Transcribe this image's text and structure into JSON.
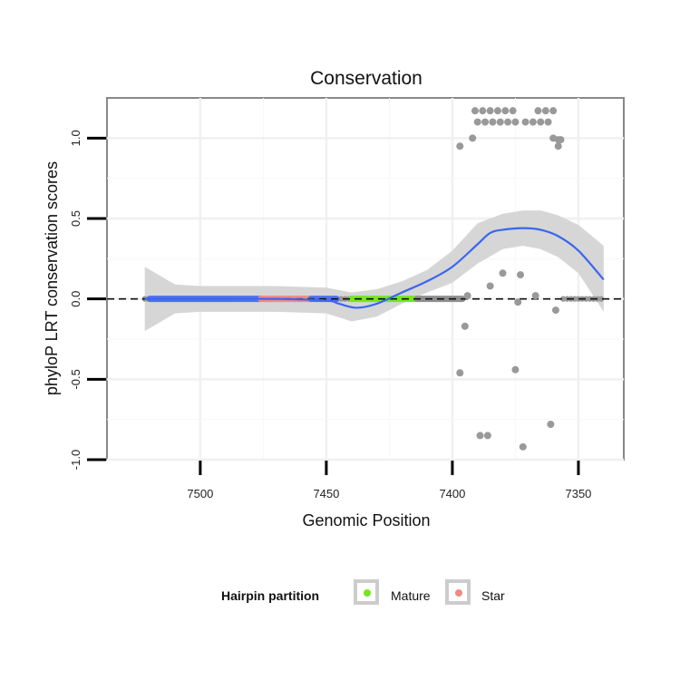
{
  "chart_data": {
    "type": "scatter",
    "title": "Conservation",
    "xlabel": "Genomic Position",
    "ylabel": "phyloP LRT conservation scores",
    "x_reversed": true,
    "xlim": [
      7537,
      7332
    ],
    "ylim": [
      -1.0,
      1.25
    ],
    "x_ticks": [
      7500,
      7450,
      7400,
      7350
    ],
    "y_ticks": [
      -1.0,
      -0.5,
      0.0,
      0.5,
      1.0
    ],
    "y_tick_labels": [
      "-1.0",
      "-0.5",
      "0.0",
      "0.5",
      "1.0"
    ],
    "reference_line": {
      "y": 0,
      "style": "dashed"
    },
    "segments": [
      {
        "name": "blue",
        "color": "#4f6ff2",
        "from": 7520,
        "to": 7476
      },
      {
        "name": "Star",
        "color": "#ef8a82",
        "from": 7476,
        "to": 7456
      },
      {
        "name": "blue",
        "color": "#4f6ff2",
        "from": 7456,
        "to": 7446
      },
      {
        "name": "Mature",
        "color": "#76e61a",
        "from": 7440,
        "to": 7414
      },
      {
        "name": "gray",
        "color": "#8f8f8f",
        "from": 7414,
        "to": 7396
      }
    ],
    "series": [
      {
        "name": "scores",
        "color": "#999999",
        "points": [
          {
            "x": 7397,
            "y": 0.95
          },
          {
            "x": 7392,
            "y": 1.0
          },
          {
            "x": 7391,
            "y": 1.17
          },
          {
            "x": 7388,
            "y": 1.17
          },
          {
            "x": 7385,
            "y": 1.17
          },
          {
            "x": 7382,
            "y": 1.17
          },
          {
            "x": 7379,
            "y": 1.17
          },
          {
            "x": 7376,
            "y": 1.17
          },
          {
            "x": 7366,
            "y": 1.17
          },
          {
            "x": 7363,
            "y": 1.17
          },
          {
            "x": 7360,
            "y": 1.17
          },
          {
            "x": 7390,
            "y": 1.1
          },
          {
            "x": 7387,
            "y": 1.1
          },
          {
            "x": 7384,
            "y": 1.1
          },
          {
            "x": 7381,
            "y": 1.1
          },
          {
            "x": 7378,
            "y": 1.1
          },
          {
            "x": 7375,
            "y": 1.1
          },
          {
            "x": 7371,
            "y": 1.1
          },
          {
            "x": 7368,
            "y": 1.1
          },
          {
            "x": 7365,
            "y": 1.1
          },
          {
            "x": 7362,
            "y": 1.1
          },
          {
            "x": 7360,
            "y": 1.0
          },
          {
            "x": 7358,
            "y": 0.99
          },
          {
            "x": 7357,
            "y": 0.99
          },
          {
            "x": 7358,
            "y": 0.95
          },
          {
            "x": 7394,
            "y": 0.02
          },
          {
            "x": 7385,
            "y": 0.08
          },
          {
            "x": 7380,
            "y": 0.16
          },
          {
            "x": 7374,
            "y": -0.02
          },
          {
            "x": 7373,
            "y": 0.15
          },
          {
            "x": 7367,
            "y": 0.02
          },
          {
            "x": 7359,
            "y": -0.07
          },
          {
            "x": 7395,
            "y": -0.17
          },
          {
            "x": 7397,
            "y": -0.46
          },
          {
            "x": 7375,
            "y": -0.44
          },
          {
            "x": 7389,
            "y": -0.85
          },
          {
            "x": 7386,
            "y": -0.85
          },
          {
            "x": 7372,
            "y": -0.92
          },
          {
            "x": 7361,
            "y": -0.78
          }
        ]
      }
    ],
    "smooth": {
      "name": "loess fit",
      "color": "#3a66f0",
      "points": [
        {
          "x": 7522,
          "y": 0.0
        },
        {
          "x": 7500,
          "y": 0.0
        },
        {
          "x": 7470,
          "y": 0.0
        },
        {
          "x": 7450,
          "y": -0.01
        },
        {
          "x": 7445,
          "y": -0.03
        },
        {
          "x": 7438,
          "y": -0.055
        },
        {
          "x": 7430,
          "y": -0.03
        },
        {
          "x": 7420,
          "y": 0.04
        },
        {
          "x": 7410,
          "y": 0.11
        },
        {
          "x": 7400,
          "y": 0.2
        },
        {
          "x": 7390,
          "y": 0.34
        },
        {
          "x": 7385,
          "y": 0.41
        },
        {
          "x": 7380,
          "y": 0.43
        },
        {
          "x": 7372,
          "y": 0.44
        },
        {
          "x": 7365,
          "y": 0.43
        },
        {
          "x": 7358,
          "y": 0.39
        },
        {
          "x": 7350,
          "y": 0.3
        },
        {
          "x": 7340,
          "y": 0.12
        }
      ],
      "band_upper": [
        {
          "x": 7522,
          "y": 0.2
        },
        {
          "x": 7510,
          "y": 0.09
        },
        {
          "x": 7500,
          "y": 0.08
        },
        {
          "x": 7470,
          "y": 0.08
        },
        {
          "x": 7450,
          "y": 0.07
        },
        {
          "x": 7440,
          "y": 0.04
        },
        {
          "x": 7430,
          "y": 0.06
        },
        {
          "x": 7420,
          "y": 0.11
        },
        {
          "x": 7410,
          "y": 0.18
        },
        {
          "x": 7400,
          "y": 0.3
        },
        {
          "x": 7390,
          "y": 0.47
        },
        {
          "x": 7380,
          "y": 0.53
        },
        {
          "x": 7372,
          "y": 0.55
        },
        {
          "x": 7365,
          "y": 0.55
        },
        {
          "x": 7358,
          "y": 0.52
        },
        {
          "x": 7350,
          "y": 0.46
        },
        {
          "x": 7340,
          "y": 0.33
        }
      ],
      "band_lower": [
        {
          "x": 7522,
          "y": -0.2
        },
        {
          "x": 7510,
          "y": -0.09
        },
        {
          "x": 7500,
          "y": -0.08
        },
        {
          "x": 7470,
          "y": -0.08
        },
        {
          "x": 7450,
          "y": -0.09
        },
        {
          "x": 7440,
          "y": -0.14
        },
        {
          "x": 7430,
          "y": -0.11
        },
        {
          "x": 7420,
          "y": -0.03
        },
        {
          "x": 7410,
          "y": 0.04
        },
        {
          "x": 7400,
          "y": 0.1
        },
        {
          "x": 7390,
          "y": 0.22
        },
        {
          "x": 7380,
          "y": 0.31
        },
        {
          "x": 7372,
          "y": 0.33
        },
        {
          "x": 7365,
          "y": 0.31
        },
        {
          "x": 7358,
          "y": 0.26
        },
        {
          "x": 7350,
          "y": 0.16
        },
        {
          "x": 7340,
          "y": -0.08
        }
      ]
    },
    "flat_points": {
      "from": 7522,
      "to": 7340,
      "y": 0.0,
      "note_ranges": [
        [
          7522,
          7396
        ],
        [
          7356,
          7340
        ]
      ]
    },
    "legend": {
      "title": "Hairpin partition",
      "position": "bottom",
      "entries": [
        {
          "label": "Mature",
          "color": "#76e61a"
        },
        {
          "label": "Star",
          "color": "#ef8a82"
        }
      ]
    }
  }
}
